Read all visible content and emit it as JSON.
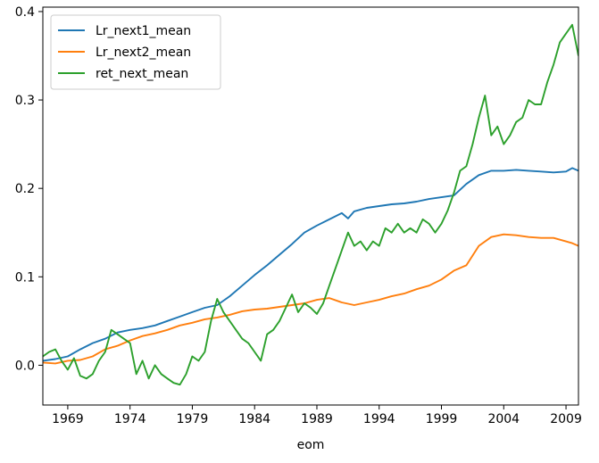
{
  "chart_data": {
    "type": "line",
    "xlabel": "eom",
    "ylabel": "",
    "title": "",
    "xlim": [
      1967,
      2010
    ],
    "ylim": [
      -0.045,
      0.405
    ],
    "x_ticks": [
      1969,
      1974,
      1979,
      1984,
      1989,
      1994,
      1999,
      2004,
      2009
    ],
    "x_tick_labels": [
      "1969",
      "1974",
      "1979",
      "1984",
      "1989",
      "1994",
      "1999",
      "2004",
      "2009"
    ],
    "y_ticks": [
      0.0,
      0.1,
      0.2,
      0.3,
      0.4
    ],
    "y_tick_labels": [
      "0.0",
      "0.1",
      "0.2",
      "0.3",
      "0.4"
    ],
    "grid": false,
    "legend_position": "top-left",
    "series": [
      {
        "name": "Lr_next1_mean",
        "color": "#1f77b4",
        "x": [
          1967.0,
          1968.0,
          1969.0,
          1970.0,
          1971.0,
          1972.0,
          1973.0,
          1974.0,
          1975.0,
          1976.0,
          1977.0,
          1978.0,
          1979.0,
          1980.0,
          1981.0,
          1982.0,
          1983.0,
          1984.0,
          1985.0,
          1986.0,
          1987.0,
          1988.0,
          1989.0,
          1990.0,
          1991.0,
          1991.5,
          1992.0,
          1993.0,
          1994.0,
          1995.0,
          1996.0,
          1997.0,
          1998.0,
          1999.0,
          2000.0,
          2001.0,
          2002.0,
          2003.0,
          2004.0,
          2005.0,
          2006.0,
          2007.0,
          2008.0,
          2009.0,
          2009.5,
          2010.0
        ],
        "y": [
          0.005,
          0.007,
          0.01,
          0.018,
          0.025,
          0.03,
          0.037,
          0.04,
          0.042,
          0.045,
          0.05,
          0.055,
          0.06,
          0.065,
          0.068,
          0.078,
          0.09,
          0.102,
          0.113,
          0.125,
          0.137,
          0.15,
          0.158,
          0.165,
          0.172,
          0.166,
          0.174,
          0.178,
          0.18,
          0.182,
          0.183,
          0.185,
          0.188,
          0.19,
          0.192,
          0.205,
          0.215,
          0.22,
          0.22,
          0.221,
          0.22,
          0.219,
          0.218,
          0.219,
          0.223,
          0.22
        ]
      },
      {
        "name": "Lr_next2_mean",
        "color": "#ff7f0e",
        "x": [
          1967.0,
          1968.0,
          1969.0,
          1970.0,
          1971.0,
          1972.0,
          1973.0,
          1974.0,
          1975.0,
          1976.0,
          1977.0,
          1978.0,
          1979.0,
          1980.0,
          1981.0,
          1982.0,
          1983.0,
          1984.0,
          1985.0,
          1986.0,
          1987.0,
          1988.0,
          1989.0,
          1990.0,
          1991.0,
          1992.0,
          1993.0,
          1994.0,
          1995.0,
          1996.0,
          1997.0,
          1998.0,
          1999.0,
          2000.0,
          2001.0,
          2002.0,
          2003.0,
          2004.0,
          2005.0,
          2006.0,
          2007.0,
          2008.0,
          2009.0,
          2009.5,
          2010.0
        ],
        "y": [
          0.003,
          0.002,
          0.005,
          0.006,
          0.01,
          0.018,
          0.022,
          0.028,
          0.033,
          0.036,
          0.04,
          0.045,
          0.048,
          0.052,
          0.054,
          0.057,
          0.061,
          0.063,
          0.064,
          0.066,
          0.068,
          0.07,
          0.074,
          0.076,
          0.071,
          0.068,
          0.071,
          0.074,
          0.078,
          0.081,
          0.086,
          0.09,
          0.097,
          0.107,
          0.113,
          0.135,
          0.145,
          0.148,
          0.147,
          0.145,
          0.144,
          0.144,
          0.14,
          0.138,
          0.135
        ]
      },
      {
        "name": "ret_next_mean",
        "color": "#2ca02c",
        "x": [
          1967.0,
          1967.5,
          1968.0,
          1968.5,
          1969.0,
          1969.5,
          1970.0,
          1970.5,
          1971.0,
          1971.5,
          1972.0,
          1972.5,
          1973.0,
          1973.5,
          1974.0,
          1974.5,
          1975.0,
          1975.5,
          1976.0,
          1976.5,
          1977.0,
          1977.5,
          1978.0,
          1978.5,
          1979.0,
          1979.5,
          1980.0,
          1980.5,
          1981.0,
          1981.5,
          1982.0,
          1982.5,
          1983.0,
          1983.5,
          1984.0,
          1984.5,
          1985.0,
          1985.5,
          1986.0,
          1986.5,
          1987.0,
          1987.5,
          1988.0,
          1988.5,
          1989.0,
          1989.5,
          1990.0,
          1990.5,
          1991.0,
          1991.5,
          1992.0,
          1992.5,
          1993.0,
          1993.5,
          1994.0,
          1994.5,
          1995.0,
          1995.5,
          1996.0,
          1996.5,
          1997.0,
          1997.5,
          1998.0,
          1998.5,
          1999.0,
          1999.5,
          2000.0,
          2000.5,
          2001.0,
          2001.5,
          2002.0,
          2002.5,
          2003.0,
          2003.5,
          2004.0,
          2004.5,
          2005.0,
          2005.5,
          2006.0,
          2006.5,
          2007.0,
          2007.5,
          2008.0,
          2008.5,
          2009.0,
          2009.5,
          2010.0
        ],
        "y": [
          0.01,
          0.015,
          0.018,
          0.005,
          -0.005,
          0.008,
          -0.012,
          -0.015,
          -0.01,
          0.005,
          0.015,
          0.04,
          0.035,
          0.03,
          0.025,
          -0.01,
          0.005,
          -0.015,
          0.0,
          -0.01,
          -0.015,
          -0.02,
          -0.022,
          -0.01,
          0.01,
          0.005,
          0.015,
          0.05,
          0.075,
          0.06,
          0.05,
          0.04,
          0.03,
          0.025,
          0.015,
          0.005,
          0.035,
          0.04,
          0.05,
          0.065,
          0.08,
          0.06,
          0.07,
          0.065,
          0.058,
          0.07,
          0.09,
          0.11,
          0.13,
          0.15,
          0.135,
          0.14,
          0.13,
          0.14,
          0.135,
          0.155,
          0.15,
          0.16,
          0.15,
          0.155,
          0.15,
          0.165,
          0.16,
          0.15,
          0.16,
          0.175,
          0.195,
          0.22,
          0.225,
          0.25,
          0.28,
          0.305,
          0.26,
          0.27,
          0.25,
          0.26,
          0.275,
          0.28,
          0.3,
          0.295,
          0.295,
          0.32,
          0.34,
          0.365,
          0.375,
          0.385,
          0.35
        ]
      }
    ]
  }
}
